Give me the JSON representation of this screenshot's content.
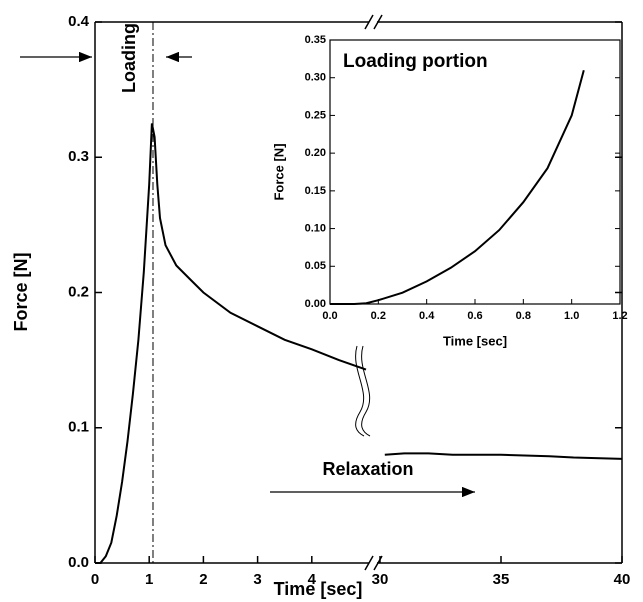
{
  "chart_data": [
    {
      "type": "line",
      "xlabel": "Time [sec]",
      "ylabel": "Force [N]",
      "xlim": [
        0,
        5
      ],
      "xticks": [
        0,
        1,
        2,
        3,
        4
      ],
      "x2lim": [
        30,
        40
      ],
      "x2ticks": [
        30,
        35,
        40
      ],
      "ylim": [
        0,
        0.4
      ],
      "yticks": [
        {
          "value": 0,
          "label": "0.0"
        },
        0.1,
        0.2,
        0.3,
        0.4
      ],
      "vline_x": 1.07,
      "annotations": [
        "Loading",
        "Relaxation"
      ],
      "series": [
        {
          "color": "#000000",
          "x": [
            0,
            0.1,
            0.2,
            0.3,
            0.4,
            0.5,
            0.6,
            0.7,
            0.8,
            0.9,
            1.0,
            1.05,
            1.1,
            1.15,
            1.2,
            1.3,
            1.5,
            1.75,
            2.0,
            2.5,
            3.0,
            3.5,
            4.0,
            4.5,
            5.0
          ],
          "values": [
            0,
            0,
            0.005,
            0.015,
            0.035,
            0.06,
            0.09,
            0.125,
            0.165,
            0.215,
            0.28,
            0.325,
            0.315,
            0.28,
            0.255,
            0.235,
            0.22,
            0.21,
            0.2,
            0.185,
            0.175,
            0.165,
            0.158,
            0.15,
            0.143
          ]
        },
        {
          "color": "#000000",
          "axis": "x2",
          "x": [
            30.2,
            31,
            32,
            33,
            35,
            37,
            38,
            40
          ],
          "values": [
            0.08,
            0.081,
            0.081,
            0.08,
            0.08,
            0.079,
            0.078,
            0.077
          ]
        }
      ]
    },
    {
      "type": "line",
      "title": "Loading portion",
      "xlabel": "Time [sec]",
      "ylabel": "Force [N]",
      "xlim": [
        0,
        1.2
      ],
      "xticks": [
        {
          "value": 0,
          "label": "0.0"
        },
        0.2,
        0.4,
        0.6,
        0.8,
        {
          "value": 1,
          "label": "1.0"
        },
        1.2
      ],
      "ylim": [
        0,
        0.35
      ],
      "yticks": [
        {
          "value": 0,
          "label": "0.00"
        },
        0.05,
        {
          "value": 0.1,
          "label": "0.10"
        },
        0.15,
        {
          "value": 0.2,
          "label": "0.20"
        },
        0.25,
        {
          "value": 0.3,
          "label": "0.30"
        },
        0.35
      ],
      "series": [
        {
          "color": "#000000",
          "x": [
            0,
            0.1,
            0.15,
            0.2,
            0.3,
            0.4,
            0.5,
            0.6,
            0.7,
            0.8,
            0.9,
            1.0,
            1.05
          ],
          "values": [
            0,
            0,
            0.001,
            0.005,
            0.015,
            0.03,
            0.048,
            0.07,
            0.098,
            0.135,
            0.18,
            0.25,
            0.31
          ]
        }
      ]
    }
  ]
}
